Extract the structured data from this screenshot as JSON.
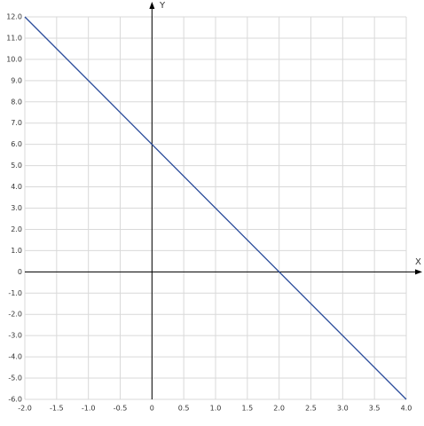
{
  "chart_data": {
    "type": "line",
    "x_label": "X",
    "y_label": "Y",
    "x": [
      -2,
      4
    ],
    "series": [
      {
        "color": "#2b4c9b",
        "values": [
          12,
          -6
        ]
      }
    ],
    "xlim": [
      -2,
      4
    ],
    "ylim": [
      -6,
      12
    ],
    "xticks": [
      {
        "value": -2,
        "label": "-2.0"
      },
      -1.5,
      {
        "value": -1,
        "label": "-1.0"
      },
      -0.5,
      0,
      0.5,
      {
        "value": 1,
        "label": "1.0"
      },
      1.5,
      {
        "value": 2,
        "label": "2.0"
      },
      2.5,
      {
        "value": 3,
        "label": "3.0"
      },
      3.5,
      {
        "value": 4,
        "label": "4.0"
      }
    ],
    "yticks": [
      {
        "value": 12,
        "label": "12.0"
      },
      {
        "value": 11,
        "label": "11.0"
      },
      {
        "value": 10,
        "label": "10.0"
      },
      {
        "value": 9,
        "label": "9.0"
      },
      {
        "value": 8,
        "label": "8.0"
      },
      {
        "value": 7,
        "label": "7.0"
      },
      {
        "value": 6,
        "label": "6.0"
      },
      {
        "value": 5,
        "label": "5.0"
      },
      {
        "value": 4,
        "label": "4.0"
      },
      {
        "value": 3,
        "label": "3.0"
      },
      {
        "value": 2,
        "label": "2.0"
      },
      {
        "value": 1,
        "label": "1.0"
      },
      0,
      {
        "value": -1,
        "label": "-1.0"
      },
      {
        "value": -2,
        "label": "-2.0"
      },
      {
        "value": -3,
        "label": "-3.0"
      },
      {
        "value": -4,
        "label": "-4.0"
      },
      {
        "value": -5,
        "label": "-5.0"
      },
      {
        "value": -6,
        "label": "-6.0"
      }
    ],
    "grid": true
  }
}
